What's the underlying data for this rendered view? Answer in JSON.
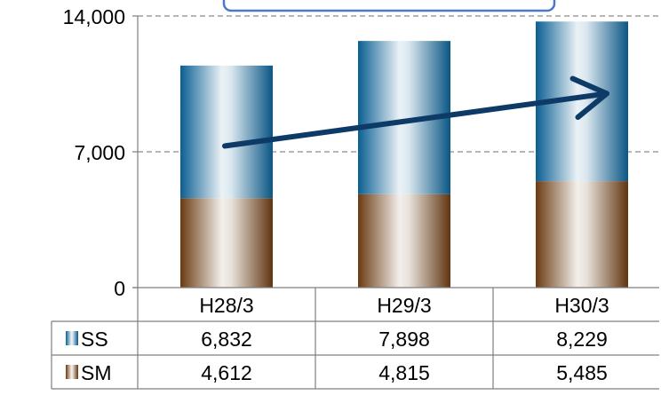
{
  "chart_data": {
    "type": "bar",
    "stacked": true,
    "categories": [
      "H28/3",
      "H29/3",
      "H30/3"
    ],
    "series": [
      {
        "name": "SS",
        "values": [
          6832,
          7898,
          8229
        ],
        "labels": [
          "6,832",
          "7,898",
          "8,229"
        ],
        "color": "#0b5f93"
      },
      {
        "name": "SM",
        "values": [
          4612,
          4815,
          5485
        ],
        "labels": [
          "4,612",
          "4,815",
          "5,485"
        ],
        "color": "#6b3b12"
      }
    ],
    "ylim": [
      0,
      14000
    ],
    "yticks": [
      {
        "value": 0,
        "label": "0"
      },
      {
        "value": 7000,
        "label": "7,000"
      },
      {
        "value": 14000,
        "label": "14,000"
      }
    ],
    "grid": true,
    "legend": "data-table",
    "trend_arrow": {
      "from_category": "H28/3",
      "to_category": "H30/3",
      "from_value": 7300,
      "to_value": 10000,
      "color": "#0d3a66"
    },
    "callout_color": "#4a79c7"
  }
}
